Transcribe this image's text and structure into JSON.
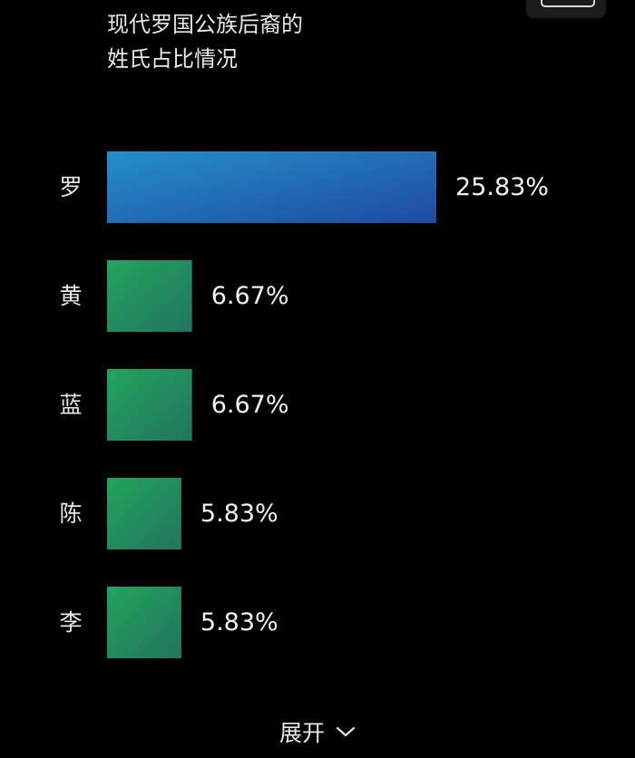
{
  "chart_data": {
    "type": "bar",
    "orientation": "horizontal",
    "title_lines": [
      "现代罗国公族后裔的",
      "姓氏占比情况"
    ],
    "categories": [
      "罗",
      "黄",
      "蓝",
      "陈",
      "李"
    ],
    "values": [
      25.83,
      6.67,
      6.67,
      5.83,
      5.83
    ],
    "value_labels": [
      "25.83%",
      "6.67%",
      "6.67%",
      "5.83%",
      "5.83%"
    ],
    "unit": "%",
    "colors": {
      "top_bar_start": "#2390c8",
      "top_bar_end": "#1f4aa3",
      "bar_start": "#22a45c",
      "bar_end": "#22745f"
    },
    "grid": false
  },
  "expand": {
    "label": "展开"
  },
  "icons": {
    "expand": "chevron-down-icon"
  }
}
